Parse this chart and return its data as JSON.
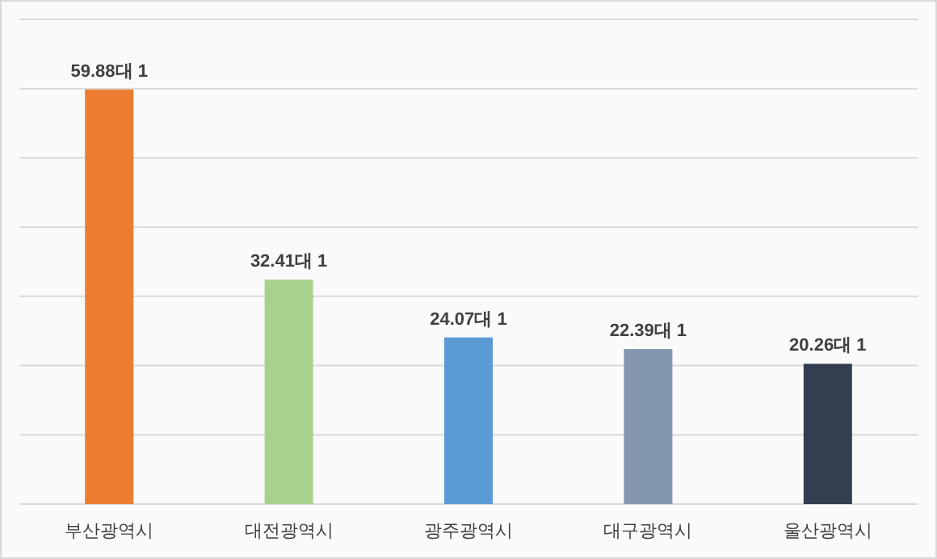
{
  "chart_data": {
    "type": "bar",
    "categories": [
      "부산광역시",
      "대전광역시",
      "광주광역시",
      "대구광역시",
      "울산광역시"
    ],
    "values": [
      59.88,
      32.41,
      24.07,
      22.39,
      20.26
    ],
    "value_labels": [
      "59.88대 1",
      "32.41대 1",
      "24.07대 1",
      "22.39대 1",
      "20.26대 1"
    ],
    "colors": [
      "#ed7d31",
      "#a9d18e",
      "#5b9bd5",
      "#8497b0",
      "#333f50"
    ],
    "ylim": [
      0,
      70
    ],
    "yticks": [
      {
        "value": 0,
        "label": null
      },
      {
        "value": 10,
        "label": null
      },
      {
        "value": 20,
        "label": null
      },
      {
        "value": 30,
        "label": null
      },
      {
        "value": 40,
        "label": null
      },
      {
        "value": 50,
        "label": null
      },
      {
        "value": 60,
        "label": null
      },
      {
        "value": 70,
        "label": null
      }
    ],
    "grid": "y",
    "tick_labels": "x"
  }
}
